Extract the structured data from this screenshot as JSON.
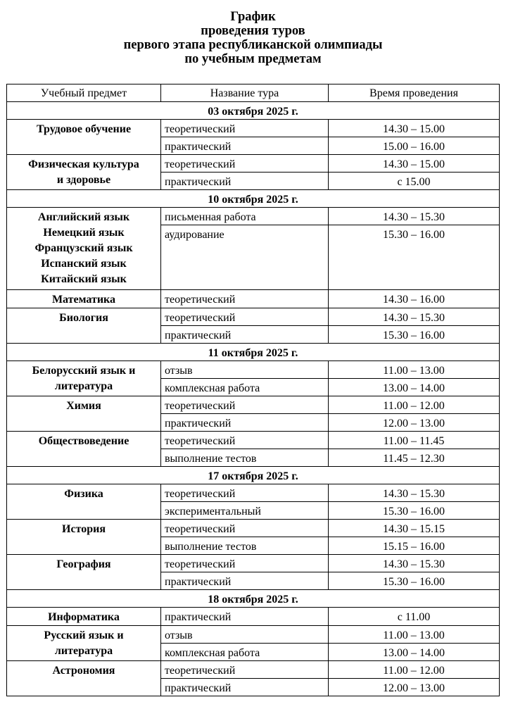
{
  "title": {
    "line1": "График",
    "line2": "проведения туров",
    "line3": "первого этапа республиканской олимпиады",
    "line4": "по учебным предметам"
  },
  "table": {
    "headers": [
      "Учебный предмет",
      "Название тура",
      "Время проведения"
    ],
    "days": [
      {
        "date": "03 октября 2025 г.",
        "subjects": [
          {
            "name": [
              "Трудовое обучение"
            ],
            "rounds": [
              [
                "теоретический",
                "14.30 – 15.00"
              ],
              [
                "практический",
                "15.00 – 16.00"
              ]
            ]
          },
          {
            "name": [
              "Физическая культура",
              "и здоровье"
            ],
            "rounds": [
              [
                "теоретический",
                "14.30 – 15.00"
              ],
              [
                "практический",
                "с 15.00"
              ]
            ]
          }
        ]
      },
      {
        "date": "10 октября 2025 г.",
        "subjects": [
          {
            "name": [
              "Английский язык",
              "Немецкий язык",
              "Французский язык",
              "Испанский язык",
              "Китайский язык"
            ],
            "rounds": [
              [
                "письменная работа",
                "14.30 – 15.30"
              ],
              [
                "аудирование",
                "15.30 – 16.00"
              ]
            ]
          },
          {
            "name": [
              "Математика"
            ],
            "rounds": [
              [
                "теоретический",
                "14.30 – 16.00"
              ]
            ]
          },
          {
            "name": [
              "Биология"
            ],
            "rounds": [
              [
                "теоретический",
                "14.30 – 15.30"
              ],
              [
                "практический",
                "15.30 – 16.00"
              ]
            ]
          }
        ]
      },
      {
        "date": "11 октября 2025 г.",
        "subjects": [
          {
            "name": [
              "Белорусский язык и",
              "литература"
            ],
            "rounds": [
              [
                "отзыв",
                "11.00 – 13.00"
              ],
              [
                "комплексная работа",
                "13.00 – 14.00"
              ]
            ]
          },
          {
            "name": [
              "Химия"
            ],
            "rounds": [
              [
                "теоретический",
                "11.00 – 12.00"
              ],
              [
                "практический",
                "12.00 – 13.00"
              ]
            ]
          },
          {
            "name": [
              "Обществоведение"
            ],
            "rounds": [
              [
                "теоретический",
                "11.00 – 11.45"
              ],
              [
                "выполнение тестов",
                "11.45 – 12.30"
              ]
            ]
          }
        ]
      },
      {
        "date": "17 октября 2025 г.",
        "subjects": [
          {
            "name": [
              "Физика"
            ],
            "rounds": [
              [
                "теоретический",
                "14.30 – 15.30"
              ],
              [
                "экспериментальный",
                "15.30 – 16.00"
              ]
            ]
          },
          {
            "name": [
              "История"
            ],
            "rounds": [
              [
                "теоретический",
                "14.30 – 15.15"
              ],
              [
                "выполнение тестов",
                "15.15 – 16.00"
              ]
            ]
          },
          {
            "name": [
              "География"
            ],
            "rounds": [
              [
                "теоретический",
                "14.30 – 15.30"
              ],
              [
                "практический",
                "15.30 – 16.00"
              ]
            ]
          }
        ]
      },
      {
        "date": "18 октября 2025 г.",
        "subjects": [
          {
            "name": [
              "Информатика"
            ],
            "rounds": [
              [
                "практический",
                "с 11.00"
              ]
            ]
          },
          {
            "name": [
              "Русский язык и",
              "литература"
            ],
            "rounds": [
              [
                "отзыв",
                "11.00 – 13.00"
              ],
              [
                "комплексная работа",
                "13.00 – 14.00"
              ]
            ]
          },
          {
            "name": [
              "Астрономия"
            ],
            "rounds": [
              [
                "теоретический",
                "11.00 – 12.00"
              ],
              [
                "практический",
                "12.00 – 13.00"
              ]
            ]
          }
        ]
      }
    ]
  }
}
